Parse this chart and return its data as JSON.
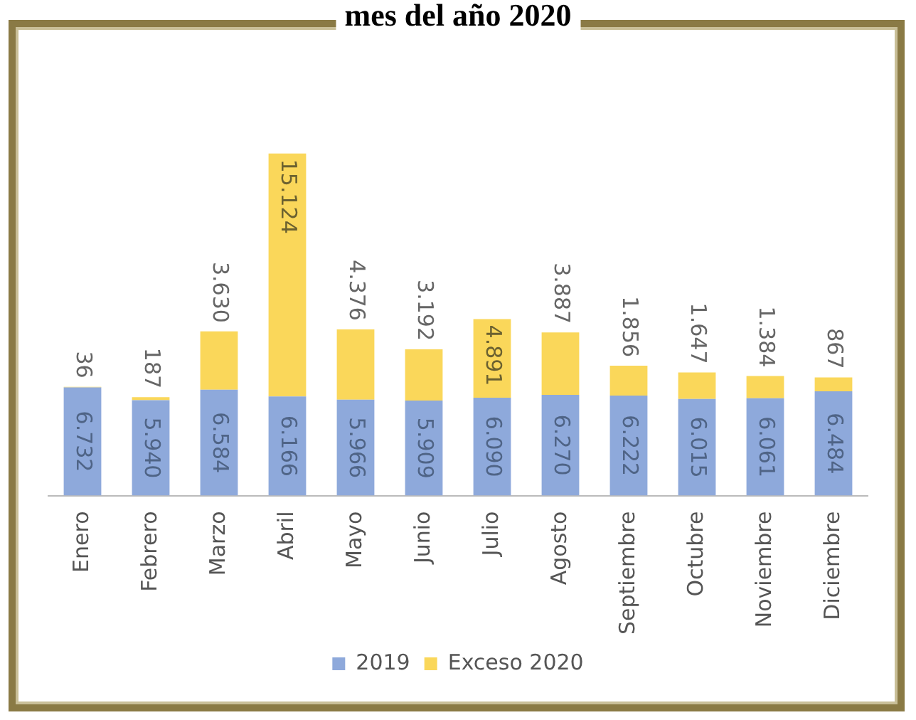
{
  "chart_data": {
    "type": "bar",
    "title": "mes del año 2020",
    "stacked": true,
    "legend": "bottom",
    "grid": false,
    "categories": [
      "Enero",
      "Febrero",
      "Marzo",
      "Abril",
      "Mayo",
      "Junio",
      "Julio",
      "Agosto",
      "Septiembre",
      "Octubre",
      "Noviembre",
      "Diciembre"
    ],
    "series": [
      {
        "name": "2019",
        "color": "#8ea9db",
        "values": [
          6732,
          5940,
          6584,
          6166,
          5966,
          5909,
          6090,
          6270,
          6222,
          6015,
          6061,
          6484
        ],
        "value_labels": [
          "6.732",
          "5.940",
          "6.584",
          "6.166",
          "5.966",
          "5.909",
          "6.090",
          "6.270",
          "6.222",
          "6.015",
          "6.061",
          "6.484"
        ]
      },
      {
        "name": "Exceso 2020",
        "color": "#fad75a",
        "values": [
          36,
          187,
          3630,
          15124,
          4376,
          3192,
          4891,
          3887,
          1856,
          1647,
          1384,
          867
        ],
        "value_labels": [
          "36",
          "187",
          "3.630",
          "15.124",
          "4.376",
          "3.192",
          "4.891",
          "3.887",
          "1.856",
          "1.647",
          "1.384",
          "867"
        ]
      }
    ]
  }
}
